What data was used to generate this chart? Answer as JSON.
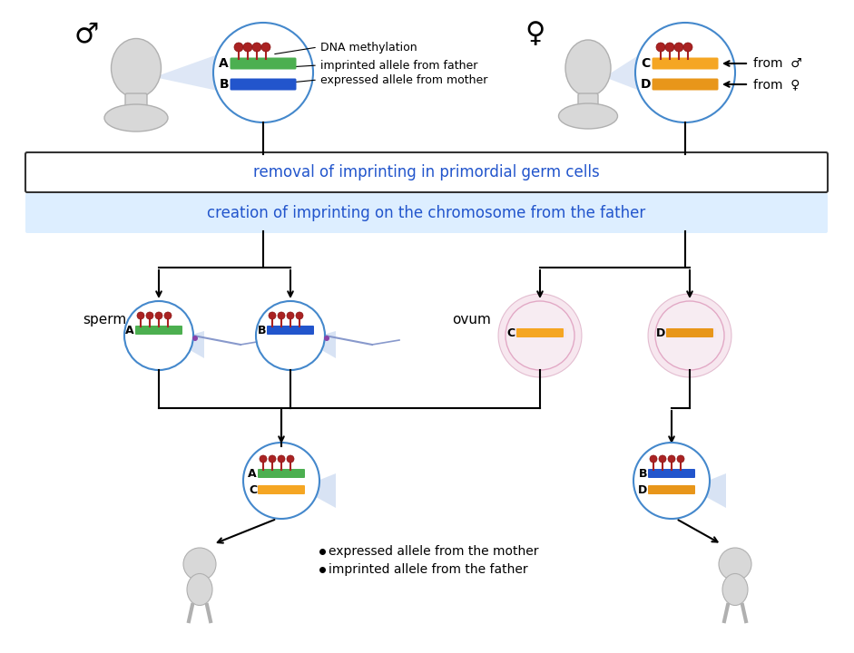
{
  "bg_color": "#ffffff",
  "text_color_blue": "#2255cc",
  "text_color_black": "#222222",
  "green_color": "#4caf50",
  "blue_color": "#2255cc",
  "orange_color": "#f5a623",
  "gray_color": "#cccccc",
  "red_color": "#cc2222",
  "light_blue_bg": "#ddeeff",
  "sperm_color": "#9999cc",
  "ovum_color": "#ddaacc",
  "box_line_color": "#333333",
  "removal_box_text": "removal of imprinting in primordial germ cells",
  "creation_box_text": "creation of imprinting on the chromosome from the father",
  "sperm_label": "sperm",
  "ovum_label": "ovum",
  "legend_expressed": "expressed allele from the mother",
  "legend_imprinted": "imprinted allele from the father",
  "from_male": "from",
  "from_female": "from",
  "dna_methylation": "DNA methylation",
  "imprinted_allele": "imprinted allele from father",
  "expressed_allele": "expressed allele from mother"
}
